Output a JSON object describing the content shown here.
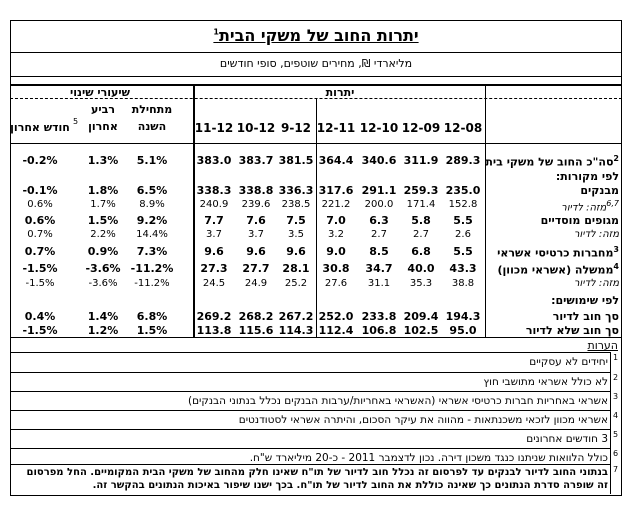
{
  "title": "יתרות החוב של משקי הבית",
  "title_sup": "1",
  "subtitle": "מליארדי ₪, מחירים שוטפים, סופי חודשים",
  "groups": {
    "balances": "יתרות",
    "rates": "שיעורי שינוי"
  },
  "columns": [
    "12-08",
    "12-09",
    "12-10",
    "12-11",
    "9-12",
    "10-12",
    "11-12"
  ],
  "rate_columns": [
    {
      "label_line1": "מתחילת",
      "label_line2": "השנה",
      "sup": ""
    },
    {
      "label_line1": "רביע",
      "label_line2": "אחרון",
      "sup": "5"
    },
    {
      "label_line1": "חודש אחרון",
      "label_line2": "",
      "sup": ""
    }
  ],
  "rows": [
    {
      "label": "סה\"כ החוב של משקי בית",
      "sup": "2",
      "values": [
        "289.3",
        "311.9",
        "340.6",
        "364.4",
        "381.5",
        "383.7",
        "383.0"
      ],
      "rates": [
        "5.1%",
        "1.3%",
        "-0.2%"
      ],
      "style": "bold"
    },
    {
      "label": "לפי מקורות:",
      "sup": "",
      "values": [],
      "rates": [],
      "style": "bold"
    },
    {
      "label": "מבנקים",
      "sup": "",
      "values": [
        "235.0",
        "259.3",
        "291.1",
        "317.6",
        "336.3",
        "338.8",
        "338.3"
      ],
      "rates": [
        "6.5%",
        "1.8%",
        "-0.1%"
      ],
      "style": "bold"
    },
    {
      "label": "מזה: לדיור",
      "sup": "6,7",
      "values": [
        "152.8",
        "171.4",
        "200.0",
        "221.2",
        "238.5",
        "239.6",
        "240.9"
      ],
      "rates": [
        "8.9%",
        "1.7%",
        "0.6%"
      ],
      "style": "ital"
    },
    {
      "label": "מגופים מוסדיים",
      "sup": "",
      "values": [
        "5.5",
        "5.8",
        "6.3",
        "7.0",
        "7.5",
        "7.6",
        "7.7"
      ],
      "rates": [
        "9.2%",
        "1.5%",
        "0.6%"
      ],
      "style": "bold"
    },
    {
      "label": "מזה: לדיור",
      "sup": "",
      "values": [
        "2.6",
        "2.7",
        "2.7",
        "3.2",
        "3.5",
        "3.7",
        "3.7"
      ],
      "rates": [
        "14.4%",
        "2.2%",
        "0.7%"
      ],
      "style": "ital"
    },
    {
      "label": "מחברות כרטיסי אשראי",
      "sup": "3",
      "values": [
        "5.5",
        "6.8",
        "8.5",
        "9.0",
        "9.6",
        "9.6",
        "9.6"
      ],
      "rates": [
        "7.3%",
        "0.9%",
        "0.7%"
      ],
      "style": "bold"
    },
    {
      "label": "ממשלה (אשראי מכוון)",
      "sup": "4",
      "values": [
        "43.3",
        "40.0",
        "34.7",
        "30.8",
        "28.1",
        "27.7",
        "27.3"
      ],
      "rates": [
        "-11.2%",
        "-3.6%",
        "-1.5%"
      ],
      "style": "bold"
    },
    {
      "label": "מזה: לדיור",
      "sup": "",
      "values": [
        "38.8",
        "35.3",
        "31.1",
        "27.6",
        "25.2",
        "24.9",
        "24.5"
      ],
      "rates": [
        "-11.2%",
        "-3.6%",
        "-1.5%"
      ],
      "style": "ital"
    },
    {
      "label": "לפי שימושים:",
      "sup": "",
      "values": [],
      "rates": [],
      "style": "bold"
    },
    {
      "label": "סך חוב לדיור",
      "sup": "",
      "values": [
        "194.3",
        "209.4",
        "233.8",
        "252.0",
        "267.2",
        "268.2",
        "269.2"
      ],
      "rates": [
        "6.8%",
        "1.4%",
        "0.4%"
      ],
      "style": "bold"
    },
    {
      "label": "סך חוב שלא לדיור",
      "sup": "",
      "values": [
        "95.0",
        "102.5",
        "106.8",
        "112.4",
        "114.3",
        "115.6",
        "113.8"
      ],
      "rates": [
        "1.5%",
        "1.2%",
        "-1.5%"
      ],
      "style": "bold"
    }
  ],
  "notes_title": "הערות",
  "notes": [
    {
      "num": "1",
      "text": "יחידים לא עסקיים"
    },
    {
      "num": "2",
      "text": "לא כולל אשראי מתושבי חוץ"
    },
    {
      "num": "3",
      "text": "אשראי באחריות חברות כרטיסי אשראי (האשראי באחריות/ערבות הבנקים נכלל בנתוני הבנקים)"
    },
    {
      "num": "4",
      "text": "אשראי מכוון לזכאי משכנתאות - מהווה את עיקר הסכום, והיתרה אשראי לסטודנטים"
    },
    {
      "num": "5",
      "text": "3 חודשים אחרונים"
    },
    {
      "num": "6",
      "text": "כולל הלוואות שניתנו כנגד משכון דירה. נכון לדצמבר 2011 - כ-20 מיליארד ש\"ח."
    },
    {
      "num": "7",
      "text_line1": "בנתוני החוב לדיור לבנקים עד לפרסום זה נכלל חוב לדיור של תו\"ח שאינו חלק מהחוב של משקי הבית המקומיים. החל מפרסום",
      "text_line2": "זה שופרה סדרת הנתונים כך שאינה כוללת את החוב לדיור של תו\"ח. בכך ישנו שיפור באיכות הנתונים בהקשר זה."
    }
  ]
}
